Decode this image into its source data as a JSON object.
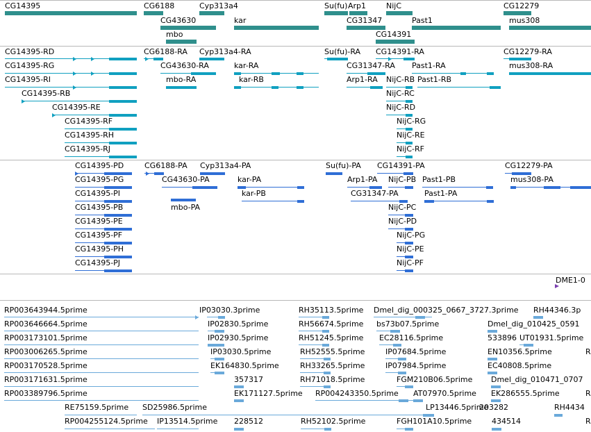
{
  "colors": {
    "gene": "#2f8f8c",
    "transcript": "#10a0c0",
    "protein": "#2f6ed6",
    "est": "#6aa9da",
    "marker": "#7b3fb0"
  },
  "genes": [
    "CG14395",
    "CG6188",
    "Cyp313a4",
    "Su(fu)",
    "Arp1",
    "NijC",
    "CG12279",
    "CG43630",
    "kar",
    "CG31347",
    "Past1",
    "mus308",
    "mbo",
    "CG14391"
  ],
  "transcripts": [
    "CG14395-RD",
    "CG6188-RA",
    "Cyp313a4-RA",
    "Su(fu)-RA",
    "CG14391-RA",
    "CG12279-RA",
    "CG14395-RG",
    "CG43630-RA",
    "kar-RA",
    "CG31347-RA",
    "Past1-RA",
    "mus308-RA",
    "CG14395-RI",
    "mbo-RA",
    "kar-RB",
    "Arp1-RA",
    "NijC-RB",
    "Past1-RB",
    "CG14395-RB",
    "NijC-RC",
    "CG14395-RE",
    "NijC-RD",
    "CG14395-RF",
    "NijC-RG",
    "CG14395-RH",
    "NijC-RE",
    "CG14395-RJ",
    "NijC-RF"
  ],
  "proteins": [
    "CG14395-PD",
    "CG6188-PA",
    "Cyp313a4-PA",
    "Su(fu)-PA",
    "CG14391-PA",
    "CG12279-PA",
    "CG14395-PG",
    "CG43630-PA",
    "kar-PA",
    "Arp1-PA",
    "NijC-PB",
    "Past1-PB",
    "mus308-PA",
    "CG14395-PI",
    "CG31347-PA",
    "Past1-PA",
    "CG14395-PB",
    "mbo-PA",
    "kar-PB",
    "NijC-PC",
    "CG14395-PE",
    "NijC-PD",
    "CG14395-PF",
    "NijC-PG",
    "CG14395-PH",
    "NijC-PE",
    "CG14395-PJ",
    "NijC-PF"
  ],
  "marker": "DME1-0",
  "ests": [
    "RP003643944.5prime",
    "IP03030.3prime",
    "RH35113.5prime",
    "Dmel_dig_000325_0667_3727.3prime",
    "RH44346.3p",
    "RP003646664.5prime",
    "IP02830.5prime",
    "RH56674.5prime",
    "bs73b07.5prime",
    "Dmel_dig_010425_0591",
    "RP003173101.5prime",
    "IP02930.5prime",
    "RH51245.5prime",
    "EC28116.5prime",
    "533896",
    "UT01931.5prime",
    "RP003006265.5prime",
    "IP03030.5prime",
    "RH52555.5prime",
    "IP07684.5prime",
    "EN10356.5prime",
    "R",
    "RP003170528.5prime",
    "EK164830.5prime",
    "RH33265.5prime",
    "IP07984.5prime",
    "EC40808.5prime",
    "RP003171631.5prime",
    "357317",
    "RH71018.5prime",
    "FGM210B06.5prime",
    "Dmel_dig_010471_0707",
    "RP003389796.5prime",
    "EK171127.5prime",
    "RP004243350.5prime",
    "AT07970.5prime",
    "EK286555.5prime",
    "R",
    "RE75159.5prime",
    "SD25986.5prime",
    "LP13446.5prime",
    "203282",
    "RH4434",
    "RP004255124.5prime",
    "IP13514.5prime",
    "228512",
    "RH52102.5prime",
    "FGH101A10.5prime",
    "434514",
    "R"
  ]
}
